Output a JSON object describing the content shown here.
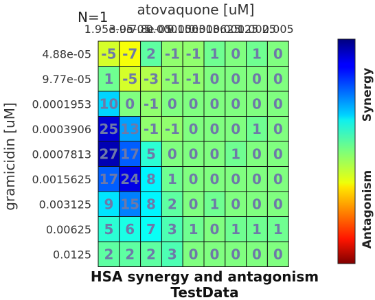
{
  "chart_data": {
    "type": "heatmap",
    "n_label": "N=1",
    "title": "HSA synergy and antagonism",
    "subtitle": "TestData",
    "xlabel": "atovaquone [uM]",
    "ylabel": "gramicidin [uM]",
    "x_ticks": [
      "1.95e-05",
      "3.9e-05",
      "7.8e-05",
      "0.000156",
      "0.000313",
      "0.000625",
      "0.00125",
      "0.0025",
      "0.005"
    ],
    "y_ticks": [
      "4.88e-05",
      "9.77e-05",
      "0.0001953",
      "0.0003906",
      "0.0007813",
      "0.0015625",
      "0.003125",
      "0.00625",
      "0.0125"
    ],
    "values": [
      [
        -5,
        -7,
        2,
        -1,
        -1,
        1,
        0,
        1,
        0
      ],
      [
        1,
        -5,
        -3,
        -1,
        -1,
        0,
        0,
        0,
        0
      ],
      [
        10,
        0,
        -1,
        0,
        0,
        0,
        0,
        0,
        0
      ],
      [
        25,
        13,
        -1,
        -1,
        0,
        0,
        0,
        1,
        0
      ],
      [
        27,
        17,
        5,
        0,
        0,
        0,
        1,
        0,
        0
      ],
      [
        17,
        24,
        8,
        1,
        0,
        0,
        0,
        0,
        0
      ],
      [
        9,
        15,
        8,
        2,
        0,
        1,
        0,
        0,
        0
      ],
      [
        5,
        6,
        7,
        3,
        1,
        0,
        1,
        1,
        1
      ],
      [
        2,
        2,
        2,
        3,
        0,
        0,
        0,
        0,
        0
      ]
    ],
    "color_range": [
      -30,
      30
    ],
    "colorbar_labels": {
      "top": "Synergy",
      "bottom": "Antagonism"
    },
    "colormap": "jet",
    "grid": true
  }
}
